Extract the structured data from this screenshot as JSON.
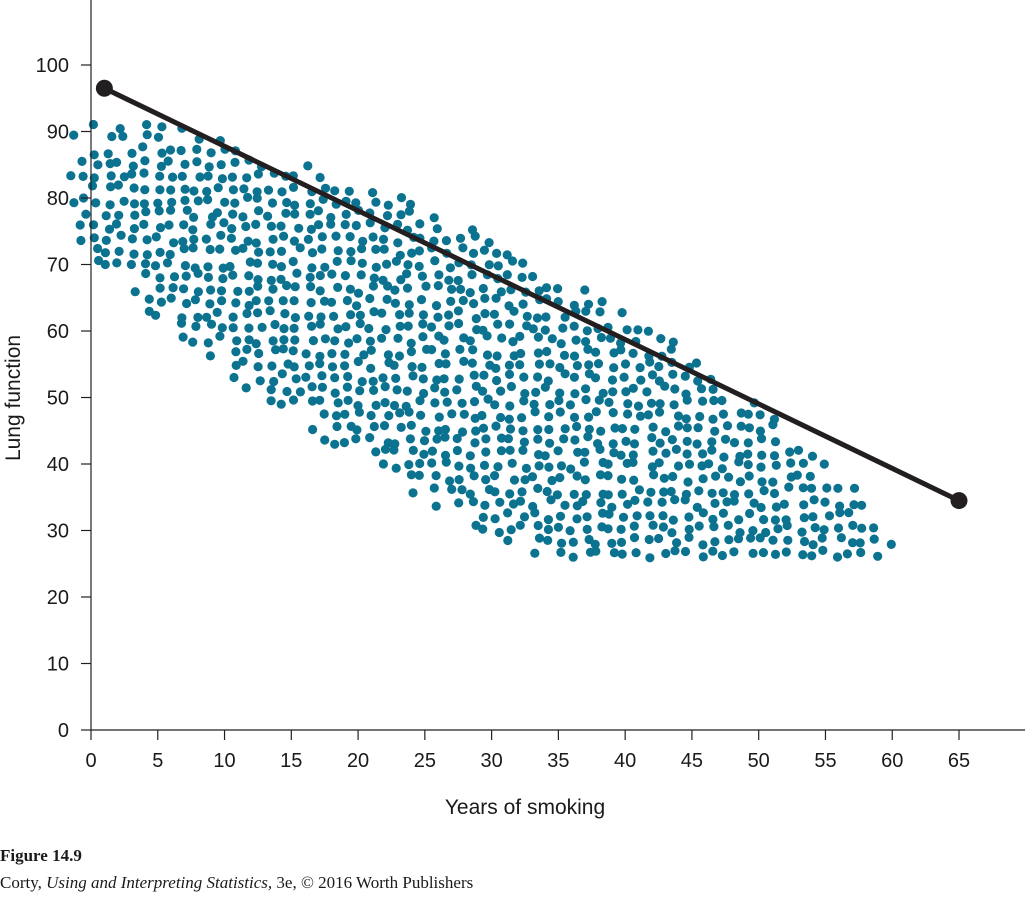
{
  "chart_data": {
    "type": "scatter",
    "title": "",
    "xlabel": "Years of smoking",
    "ylabel": "Lung function",
    "xlim": [
      0,
      65
    ],
    "ylim": [
      0,
      100
    ],
    "x_ticks": [
      0,
      5,
      10,
      15,
      20,
      25,
      30,
      35,
      40,
      45,
      50,
      55,
      60,
      65
    ],
    "y_ticks": [
      0,
      10,
      20,
      30,
      40,
      50,
      60,
      70,
      80,
      90,
      100
    ],
    "grid": false,
    "legend": "none",
    "point_color": "#0b7290",
    "line_color": "#231f20",
    "cloud": {
      "description_points": "approximately 800 points forming an elliptical cloud with a negative trend",
      "x_range": [
        0,
        66
      ],
      "y_range": [
        29,
        101
      ]
    },
    "regression_line": {
      "start": {
        "x": 1,
        "y": 96.5
      },
      "end": {
        "x": 65,
        "y": 34.5
      }
    }
  },
  "caption": {
    "figure_label": "Figure 14.9",
    "author": "Corty,",
    "book_title": "Using and Interpreting Statistics,",
    "credit_rest": "3e, © 2016 Worth Publishers"
  }
}
